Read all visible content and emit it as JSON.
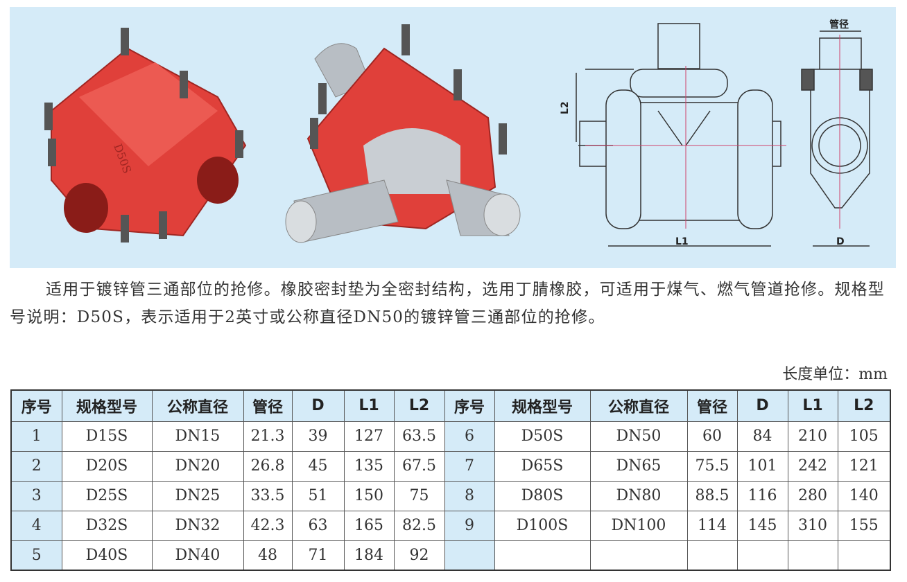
{
  "drawing_labels": {
    "pipe_diameter": "管径",
    "l1": "L1",
    "l2": "L2",
    "d": "D"
  },
  "product_marking": "D50S",
  "description": [
    "适用于镀锌管三通部位的抢修。橡胶密封垫为全密封结构，选用丁腈橡胶，可适用于煤气、燃气管道抢修。规格型号说明：D50S，表示适用于2英寸或公称直径DN50的镀锌管三通部位的抢修。"
  ],
  "unit_label": "长度单位：mm",
  "colors": {
    "panel": "#d5ebf8",
    "product": "#e0403a",
    "pipe": "#b8bec4"
  },
  "table": {
    "headers": [
      "序号",
      "规格型号",
      "公称直径",
      "管径",
      "D",
      "L1",
      "L2",
      "序号",
      "规格型号",
      "公称直径",
      "管径",
      "D",
      "L1",
      "L2"
    ],
    "rows": [
      [
        "1",
        "D15S",
        "DN15",
        "21.3",
        "39",
        "127",
        "63.5",
        "6",
        "D50S",
        "DN50",
        "60",
        "84",
        "210",
        "105"
      ],
      [
        "2",
        "D20S",
        "DN20",
        "26.8",
        "45",
        "135",
        "67.5",
        "7",
        "D65S",
        "DN65",
        "75.5",
        "101",
        "242",
        "121"
      ],
      [
        "3",
        "D25S",
        "DN25",
        "33.5",
        "51",
        "150",
        "75",
        "8",
        "D80S",
        "DN80",
        "88.5",
        "116",
        "280",
        "140"
      ],
      [
        "4",
        "D32S",
        "DN32",
        "42.3",
        "63",
        "165",
        "82.5",
        "9",
        "D100S",
        "DN100",
        "114",
        "145",
        "310",
        "155"
      ],
      [
        "5",
        "D40S",
        "DN40",
        "48",
        "71",
        "184",
        "92",
        "",
        "",
        "",
        "",
        "",
        "",
        ""
      ]
    ]
  }
}
